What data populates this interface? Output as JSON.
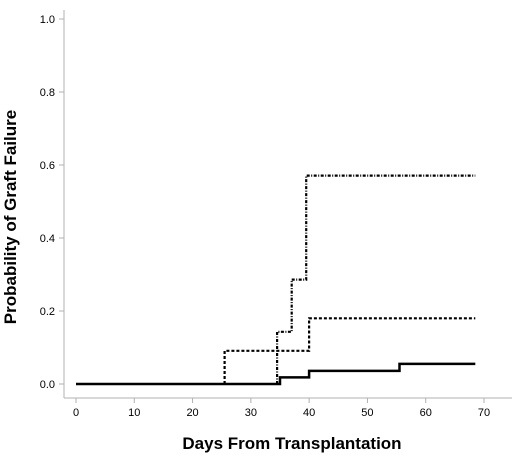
{
  "chart_data": {
    "type": "line",
    "step": true,
    "title": "",
    "xlabel": "Days From Transplantation",
    "ylabel": "Probability of Graft Failure",
    "xlim": [
      0,
      70
    ],
    "ylim": [
      0,
      1.0
    ],
    "x_ticks": [
      0,
      10,
      20,
      30,
      40,
      50,
      60,
      70
    ],
    "x_tick_labels": [
      "0",
      "10",
      "20",
      "30",
      "40",
      "50",
      "60",
      "70"
    ],
    "y_ticks": [
      0,
      0.2,
      0.4,
      0.6,
      0.8,
      1.0
    ],
    "y_tick_labels": [
      "0.0",
      "0.2",
      "0.4",
      "0.6",
      "0.8",
      "1.0"
    ],
    "grid": false,
    "legend": "none",
    "series": [
      {
        "line_style": "solid",
        "color": "#000000",
        "points": [
          [
            0,
            0
          ],
          [
            35,
            0
          ],
          [
            35,
            0.018
          ],
          [
            40,
            0.018
          ],
          [
            40,
            0.036
          ],
          [
            55.5,
            0.036
          ],
          [
            55.5,
            0.055
          ],
          [
            68.5,
            0.055
          ]
        ]
      },
      {
        "line_style": "dashed",
        "color": "#000000",
        "points": [
          [
            25.5,
            0
          ],
          [
            25.5,
            0.091
          ],
          [
            40,
            0.091
          ],
          [
            40,
            0.18
          ],
          [
            68.5,
            0.18
          ]
        ]
      },
      {
        "line_style": "dash-dot",
        "color": "#000000",
        "points": [
          [
            34.5,
            0
          ],
          [
            34.5,
            0.143
          ],
          [
            37,
            0.143
          ],
          [
            37,
            0.286
          ],
          [
            39.5,
            0.286
          ],
          [
            39.5,
            0.571
          ],
          [
            68.5,
            0.571
          ]
        ]
      }
    ]
  }
}
